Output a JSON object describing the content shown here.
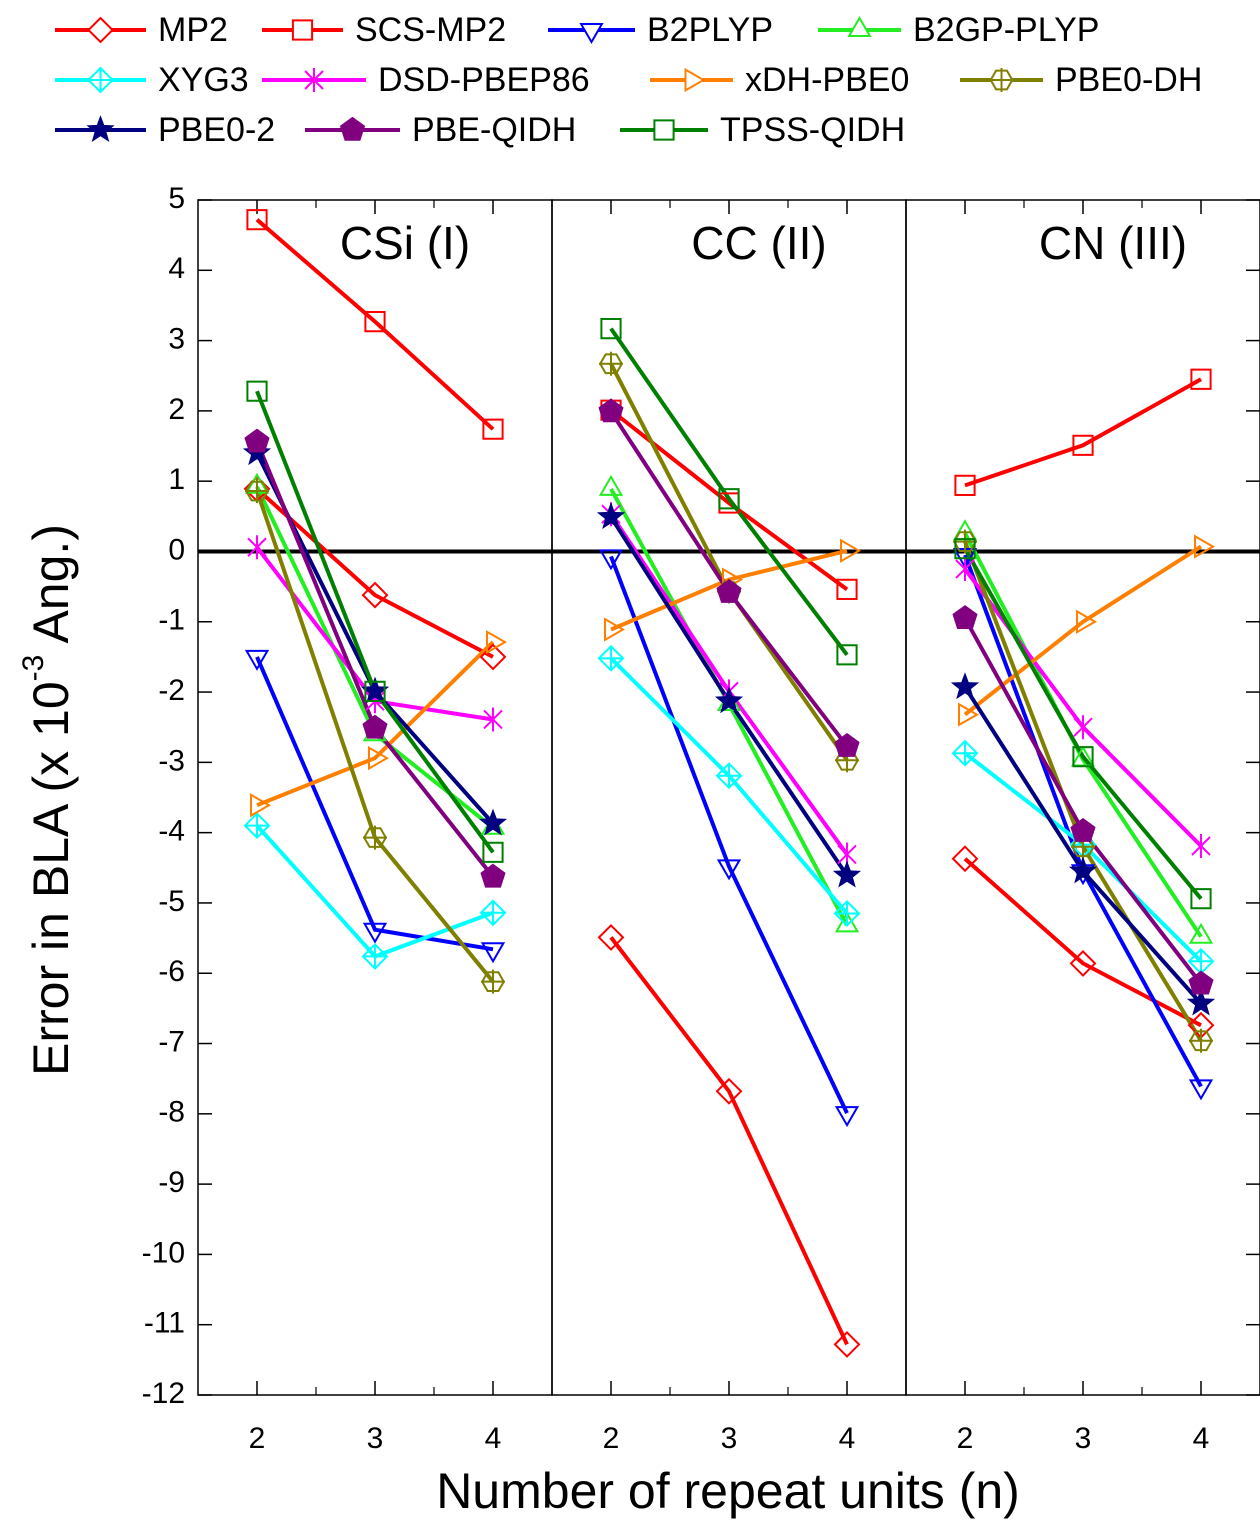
{
  "chart_data": {
    "type": "line",
    "x_label": "Number of repeat units (n)",
    "y_label": "Error in BLA (x 10",
    "y_label_sup": "-3",
    "y_label_end": " Ang.)",
    "ylim": [
      -12,
      5
    ],
    "yticks": [
      -12,
      -11,
      -10,
      -9,
      -8,
      -7,
      -6,
      -5,
      -4,
      -3,
      -2,
      -1,
      0,
      1,
      2,
      3,
      4,
      5
    ],
    "xlim": [
      1.5,
      4.5
    ],
    "xticks": [
      2,
      3,
      4
    ],
    "x_minor_ticks": [
      2.5,
      3.5
    ],
    "zero_line": true,
    "series": [
      {
        "name": "MP2",
        "color": "#ff0000",
        "marker": "diamond"
      },
      {
        "name": "SCS-MP2",
        "color": "#ff0000",
        "marker": "square"
      },
      {
        "name": "B2PLYP",
        "color": "#0000ff",
        "marker": "triangle-down"
      },
      {
        "name": "B2GP-PLYP",
        "color": "#22ee22",
        "marker": "triangle-up"
      },
      {
        "name": "XYG3",
        "color": "#00ffff",
        "marker": "diamond-plus"
      },
      {
        "name": "DSD-PBEP86",
        "color": "#ff00ff",
        "marker": "asterisk"
      },
      {
        "name": "xDH-PBE0",
        "color": "#ff8000",
        "marker": "triangle-right"
      },
      {
        "name": "PBE0-DH",
        "color": "#808000",
        "marker": "hexagon-plus"
      },
      {
        "name": "PBE0-2",
        "color": "#000080",
        "marker": "star"
      },
      {
        "name": "PBE-QIDH",
        "color": "#800080",
        "marker": "pentagon"
      },
      {
        "name": "TPSS-QIDH",
        "color": "#008000",
        "marker": "square"
      }
    ],
    "panels": [
      {
        "title": "CSi (I)",
        "x": [
          2,
          3,
          4
        ],
        "series": [
          {
            "values": [
              0.89,
              -0.62,
              -1.5
            ]
          },
          {
            "values": [
              4.72,
              3.27,
              1.74
            ]
          },
          {
            "values": [
              -1.5,
              -5.38,
              -5.66
            ]
          },
          {
            "values": [
              0.92,
              -2.6,
              -3.93
            ]
          },
          {
            "values": [
              -3.9,
              -5.76,
              -5.14
            ]
          },
          {
            "values": [
              0.06,
              -2.13,
              -2.39
            ]
          },
          {
            "values": [
              -3.61,
              -2.94,
              -1.29
            ]
          },
          {
            "values": [
              0.86,
              -4.07,
              -6.12
            ]
          },
          {
            "values": [
              1.4,
              -1.99,
              -3.87
            ]
          },
          {
            "values": [
              1.56,
              -2.51,
              -4.63
            ]
          },
          {
            "values": [
              2.28,
              -1.99,
              -4.28
            ]
          }
        ]
      },
      {
        "title": "CC (II)",
        "x": [
          2,
          3,
          4
        ],
        "series": [
          {
            "values": [
              -5.49,
              -7.68,
              -11.28
            ]
          },
          {
            "values": [
              2.01,
              0.69,
              -0.54
            ]
          },
          {
            "values": [
              -0.07,
              -4.48,
              -7.99
            ]
          },
          {
            "values": [
              0.89,
              -2.17,
              -5.32
            ]
          },
          {
            "values": [
              -1.52,
              -3.19,
              -5.15
            ]
          },
          {
            "values": [
              0.53,
              -1.99,
              -4.31
            ]
          },
          {
            "values": [
              -1.11,
              -0.4,
              0.01
            ]
          },
          {
            "values": [
              2.67,
              -0.57,
              -2.97
            ]
          },
          {
            "values": [
              0.49,
              -2.13,
              -4.61
            ]
          },
          {
            "values": [
              1.99,
              -0.58,
              -2.77
            ]
          },
          {
            "values": [
              3.17,
              0.75,
              -1.47
            ]
          }
        ]
      },
      {
        "title": "CN (III)",
        "x": [
          2,
          3,
          4
        ],
        "series": [
          {
            "values": [
              -4.37,
              -5.86,
              -6.74
            ]
          },
          {
            "values": [
              0.94,
              1.51,
              2.45
            ]
          },
          {
            "values": [
              -0.05,
              -4.55,
              -7.61
            ]
          },
          {
            "values": [
              0.26,
              -2.96,
              -5.48
            ]
          },
          {
            "values": [
              -2.87,
              -4.17,
              -5.83
            ]
          },
          {
            "values": [
              -0.25,
              -2.5,
              -4.19
            ]
          },
          {
            "values": [
              -2.32,
              -1.0,
              0.07
            ]
          },
          {
            "values": [
              0.14,
              -4.2,
              -6.96
            ]
          },
          {
            "values": [
              -1.93,
              -4.55,
              -6.43
            ]
          },
          {
            "values": [
              -0.95,
              -3.98,
              -6.15
            ]
          },
          {
            "values": [
              0.04,
              -2.92,
              -4.94
            ]
          }
        ]
      }
    ]
  }
}
